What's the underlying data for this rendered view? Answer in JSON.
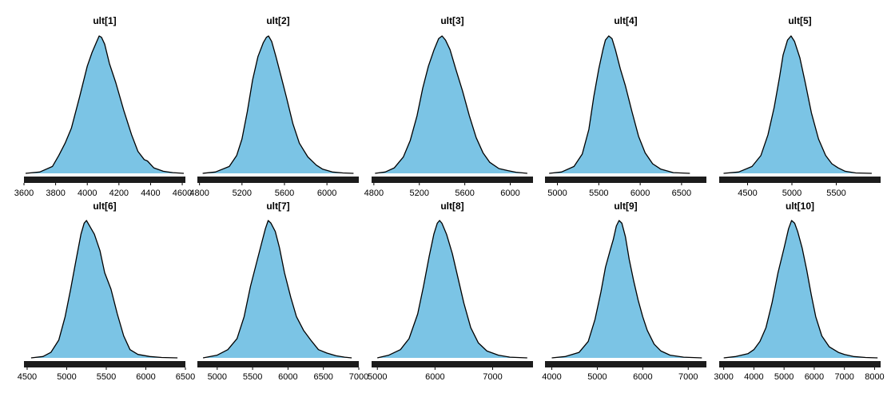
{
  "chart_data": {
    "type": "area",
    "panels": [
      {
        "title": "ult[1]",
        "fill": "#7bc4e5",
        "xlim": [
          3600,
          4620
        ],
        "ticks": [
          3600,
          3800,
          4000,
          4200,
          4400,
          4600
        ],
        "x": [
          3610,
          3700,
          3780,
          3820,
          3860,
          3900,
          3950,
          4000,
          4030,
          4060,
          4075,
          4090,
          4110,
          4140,
          4180,
          4230,
          4280,
          4320,
          4360,
          4380,
          4420,
          4480,
          4540,
          4610
        ],
        "y": [
          0,
          0.01,
          0.05,
          0.13,
          0.22,
          0.33,
          0.55,
          0.78,
          0.88,
          0.96,
          1.0,
          0.99,
          0.94,
          0.8,
          0.66,
          0.46,
          0.28,
          0.16,
          0.1,
          0.09,
          0.04,
          0.015,
          0.005,
          0
        ]
      },
      {
        "title": "ult[2]",
        "fill": "#7bc4e5",
        "xlim": [
          4780,
          6300
        ],
        "ticks": [
          4800,
          5200,
          5600,
          6000
        ],
        "x": [
          4830,
          4950,
          5080,
          5150,
          5200,
          5250,
          5300,
          5350,
          5400,
          5430,
          5450,
          5480,
          5520,
          5570,
          5620,
          5680,
          5740,
          5820,
          5900,
          5960,
          6050,
          6150,
          6250
        ],
        "y": [
          0,
          0.01,
          0.05,
          0.13,
          0.25,
          0.45,
          0.68,
          0.85,
          0.95,
          0.99,
          1.0,
          0.96,
          0.85,
          0.7,
          0.55,
          0.36,
          0.22,
          0.12,
          0.06,
          0.03,
          0.01,
          0.003,
          0
        ]
      },
      {
        "title": "ult[3]",
        "fill": "#7bc4e5",
        "xlim": [
          4780,
          6200
        ],
        "ticks": [
          4800,
          5200,
          5600,
          6000
        ],
        "x": [
          4810,
          4900,
          4980,
          5060,
          5120,
          5180,
          5230,
          5280,
          5330,
          5370,
          5400,
          5430,
          5470,
          5520,
          5580,
          5640,
          5700,
          5760,
          5820,
          5900,
          5980,
          6050,
          6150
        ],
        "y": [
          0,
          0.01,
          0.04,
          0.12,
          0.24,
          0.42,
          0.62,
          0.78,
          0.9,
          0.98,
          1.0,
          0.97,
          0.9,
          0.76,
          0.6,
          0.42,
          0.26,
          0.15,
          0.08,
          0.035,
          0.02,
          0.008,
          0
        ]
      },
      {
        "title": "ult[4]",
        "fill": "#7bc4e5",
        "xlim": [
          4850,
          6800
        ],
        "ticks": [
          5000,
          5500,
          6000,
          6500
        ],
        "x": [
          4900,
          5050,
          5200,
          5300,
          5380,
          5440,
          5500,
          5550,
          5580,
          5620,
          5660,
          5700,
          5760,
          5820,
          5900,
          5980,
          6060,
          6150,
          6250,
          6400,
          6600
        ],
        "y": [
          0,
          0.01,
          0.05,
          0.14,
          0.32,
          0.56,
          0.76,
          0.9,
          0.97,
          1.0,
          0.98,
          0.9,
          0.76,
          0.64,
          0.45,
          0.27,
          0.15,
          0.07,
          0.03,
          0.005,
          0
        ]
      },
      {
        "title": "ult[5]",
        "fill": "#7bc4e5",
        "xlim": [
          4180,
          6000
        ],
        "ticks": [
          4500,
          5000,
          5500
        ],
        "x": [
          4230,
          4400,
          4550,
          4650,
          4730,
          4800,
          4860,
          4900,
          4950,
          4990,
          5030,
          5090,
          5150,
          5220,
          5300,
          5380,
          5450,
          5520,
          5600,
          5720,
          5900
        ],
        "y": [
          0,
          0.01,
          0.05,
          0.13,
          0.28,
          0.48,
          0.7,
          0.86,
          0.97,
          1.0,
          0.96,
          0.84,
          0.66,
          0.44,
          0.25,
          0.13,
          0.07,
          0.04,
          0.015,
          0.003,
          0
        ]
      },
      {
        "title": "ult[6]",
        "fill": "#7bc4e5",
        "xlim": [
          4460,
          6500
        ],
        "ticks": [
          4500,
          5000,
          5500,
          6000,
          6500
        ],
        "x": [
          4550,
          4700,
          4800,
          4900,
          4980,
          5050,
          5120,
          5180,
          5220,
          5250,
          5290,
          5350,
          5420,
          5480,
          5560,
          5640,
          5720,
          5800,
          5900,
          6050,
          6200,
          6400
        ],
        "y": [
          0,
          0.01,
          0.04,
          0.13,
          0.3,
          0.5,
          0.72,
          0.9,
          0.98,
          1.0,
          0.96,
          0.9,
          0.78,
          0.62,
          0.5,
          0.32,
          0.16,
          0.06,
          0.025,
          0.01,
          0.003,
          0
        ]
      },
      {
        "title": "ult[7]",
        "fill": "#7bc4e5",
        "xlim": [
          4720,
          7000
        ],
        "ticks": [
          5000,
          5500,
          6000,
          6500,
          7000
        ],
        "x": [
          4800,
          5000,
          5150,
          5280,
          5380,
          5470,
          5550,
          5620,
          5680,
          5720,
          5760,
          5820,
          5880,
          5950,
          6040,
          6120,
          6220,
          6320,
          6430,
          6550,
          6680,
          6800,
          6900
        ],
        "y": [
          0,
          0.02,
          0.06,
          0.14,
          0.3,
          0.52,
          0.68,
          0.82,
          0.94,
          1.0,
          0.98,
          0.92,
          0.8,
          0.62,
          0.44,
          0.3,
          0.2,
          0.13,
          0.06,
          0.035,
          0.015,
          0.005,
          0
        ]
      },
      {
        "title": "ult[8]",
        "fill": "#7bc4e5",
        "xlim": [
          4900,
          7700
        ],
        "ticks": [
          5000,
          6000,
          7000
        ],
        "x": [
          5000,
          5200,
          5400,
          5550,
          5700,
          5800,
          5900,
          5980,
          6040,
          6080,
          6120,
          6200,
          6300,
          6400,
          6500,
          6620,
          6750,
          6900,
          7100,
          7300,
          7600
        ],
        "y": [
          0,
          0.02,
          0.06,
          0.14,
          0.32,
          0.52,
          0.74,
          0.9,
          0.98,
          1.0,
          0.98,
          0.9,
          0.76,
          0.58,
          0.4,
          0.22,
          0.11,
          0.05,
          0.02,
          0.005,
          0
        ]
      },
      {
        "title": "ult[9]",
        "fill": "#7bc4e5",
        "xlim": [
          3850,
          7400
        ],
        "ticks": [
          4000,
          5000,
          6000,
          7000
        ],
        "x": [
          4000,
          4300,
          4600,
          4800,
          4950,
          5080,
          5180,
          5280,
          5350,
          5420,
          5480,
          5540,
          5620,
          5700,
          5800,
          5900,
          6000,
          6100,
          6250,
          6400,
          6600,
          6900,
          7300
        ],
        "y": [
          0,
          0.01,
          0.04,
          0.12,
          0.28,
          0.48,
          0.66,
          0.78,
          0.86,
          0.96,
          1.0,
          0.98,
          0.88,
          0.72,
          0.56,
          0.42,
          0.3,
          0.2,
          0.1,
          0.05,
          0.02,
          0.005,
          0
        ]
      },
      {
        "title": "ult[10]",
        "fill": "#7bc4e5",
        "xlim": [
          2850,
          8200
        ],
        "ticks": [
          3000,
          4000,
          5000,
          6000,
          7000,
          8000
        ],
        "x": [
          3000,
          3400,
          3800,
          4000,
          4200,
          4400,
          4600,
          4800,
          5000,
          5150,
          5250,
          5350,
          5450,
          5600,
          5750,
          5900,
          6050,
          6250,
          6500,
          6800,
          7000,
          7300,
          7700,
          8100
        ],
        "y": [
          0,
          0.01,
          0.03,
          0.06,
          0.12,
          0.22,
          0.4,
          0.62,
          0.8,
          0.94,
          1.0,
          0.98,
          0.92,
          0.8,
          0.64,
          0.46,
          0.3,
          0.16,
          0.08,
          0.04,
          0.025,
          0.01,
          0.003,
          0
        ]
      }
    ]
  }
}
